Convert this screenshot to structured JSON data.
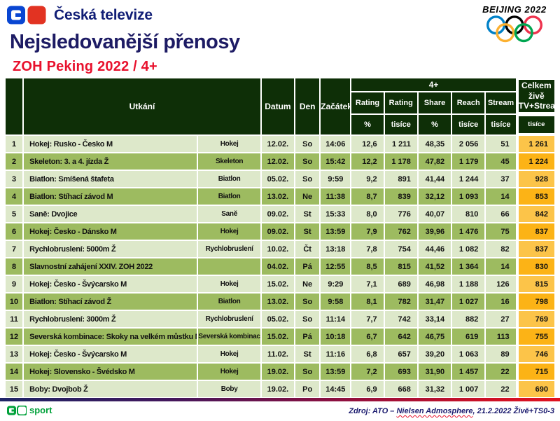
{
  "brand": {
    "name": "Česká televize",
    "sport_label": "sport"
  },
  "page": {
    "title": "Nejsledovanější přenosy",
    "subtitle": "ZOH Peking 2022 / 4+"
  },
  "olympics": {
    "wordmark": "BEIJING 2022"
  },
  "table": {
    "group_4plus": "4+",
    "columns": {
      "utkani": "Utkání",
      "datum": "Datum",
      "den": "Den",
      "zacatek": "Začátek",
      "rating": "Rating",
      "share": "Share",
      "reach": "Reach",
      "stream": "Stream",
      "celkem": "Celkem živě TV+Stream"
    },
    "units": {
      "pct": "%",
      "tisice": "tisíce"
    },
    "rows": [
      {
        "rank": "1",
        "name": "Hokej: Rusko - Česko M",
        "sport": "Hokej",
        "datum": "12.02.",
        "den": "So",
        "zacatek": "14:06",
        "rating_pct": "12,6",
        "rating_tis": "1 211",
        "share_pct": "48,35",
        "reach_tis": "2 056",
        "stream_tis": "51",
        "celkem_tis": "1 261"
      },
      {
        "rank": "2",
        "name": "Skeleton: 3. a 4. jízda Ž",
        "sport": "Skeleton",
        "datum": "12.02.",
        "den": "So",
        "zacatek": "15:42",
        "rating_pct": "12,2",
        "rating_tis": "1 178",
        "share_pct": "47,82",
        "reach_tis": "1 179",
        "stream_tis": "45",
        "celkem_tis": "1 224"
      },
      {
        "rank": "3",
        "name": "Biatlon: Smíšená štafeta",
        "sport": "Biatlon",
        "datum": "05.02.",
        "den": "So",
        "zacatek": "9:59",
        "rating_pct": "9,2",
        "rating_tis": "891",
        "share_pct": "41,44",
        "reach_tis": "1 244",
        "stream_tis": "37",
        "celkem_tis": "928"
      },
      {
        "rank": "4",
        "name": "Biatlon: Stíhací závod M",
        "sport": "Biatlon",
        "datum": "13.02.",
        "den": "Ne",
        "zacatek": "11:38",
        "rating_pct": "8,7",
        "rating_tis": "839",
        "share_pct": "32,12",
        "reach_tis": "1 093",
        "stream_tis": "14",
        "celkem_tis": "853"
      },
      {
        "rank": "5",
        "name": "Saně: Dvojice",
        "sport": "Saně",
        "datum": "09.02.",
        "den": "St",
        "zacatek": "15:33",
        "rating_pct": "8,0",
        "rating_tis": "776",
        "share_pct": "40,07",
        "reach_tis": "810",
        "stream_tis": "66",
        "celkem_tis": "842"
      },
      {
        "rank": "6",
        "name": "Hokej: Česko - Dánsko M",
        "sport": "Hokej",
        "datum": "09.02.",
        "den": "St",
        "zacatek": "13:59",
        "rating_pct": "7,9",
        "rating_tis": "762",
        "share_pct": "39,96",
        "reach_tis": "1 476",
        "stream_tis": "75",
        "celkem_tis": "837"
      },
      {
        "rank": "7",
        "name": "Rychlobruslení: 5000m Ž",
        "sport": "Rychlobruslení",
        "datum": "10.02.",
        "den": "Čt",
        "zacatek": "13:18",
        "rating_pct": "7,8",
        "rating_tis": "754",
        "share_pct": "44,46",
        "reach_tis": "1 082",
        "stream_tis": "82",
        "celkem_tis": "837"
      },
      {
        "rank": "8",
        "name": "Slavnostní zahájení XXIV. ZOH 2022",
        "sport": "",
        "datum": "04.02.",
        "den": "Pá",
        "zacatek": "12:55",
        "rating_pct": "8,5",
        "rating_tis": "815",
        "share_pct": "41,52",
        "reach_tis": "1 364",
        "stream_tis": "14",
        "celkem_tis": "830"
      },
      {
        "rank": "9",
        "name": "Hokej: Česko - Švýcarsko M",
        "sport": "Hokej",
        "datum": "15.02.",
        "den": "Ne",
        "zacatek": "9:29",
        "rating_pct": "7,1",
        "rating_tis": "689",
        "share_pct": "46,98",
        "reach_tis": "1 188",
        "stream_tis": "126",
        "celkem_tis": "815"
      },
      {
        "rank": "10",
        "name": "Biatlon: Stíhací závod Ž",
        "sport": "Biatlon",
        "datum": "13.02.",
        "den": "So",
        "zacatek": "9:58",
        "rating_pct": "8,1",
        "rating_tis": "782",
        "share_pct": "31,47",
        "reach_tis": "1 027",
        "stream_tis": "16",
        "celkem_tis": "798"
      },
      {
        "rank": "11",
        "name": "Rychlobruslení: 3000m Ž",
        "sport": "Rychlobruslení",
        "datum": "05.02.",
        "den": "So",
        "zacatek": "11:14",
        "rating_pct": "7,7",
        "rating_tis": "742",
        "share_pct": "33,14",
        "reach_tis": "882",
        "stream_tis": "27",
        "celkem_tis": "769"
      },
      {
        "rank": "12",
        "name": "Severská kombinace: Skoky na velkém můstku M",
        "sport": "Severská kombinace",
        "datum": "15.02.",
        "den": "Pá",
        "zacatek": "10:18",
        "rating_pct": "6,7",
        "rating_tis": "642",
        "share_pct": "46,75",
        "reach_tis": "619",
        "stream_tis": "113",
        "celkem_tis": "755"
      },
      {
        "rank": "13",
        "name": "Hokej: Česko - Švýcarsko M",
        "sport": "Hokej",
        "datum": "11.02.",
        "den": "St",
        "zacatek": "11:16",
        "rating_pct": "6,8",
        "rating_tis": "657",
        "share_pct": "39,20",
        "reach_tis": "1 063",
        "stream_tis": "89",
        "celkem_tis": "746"
      },
      {
        "rank": "14",
        "name": "Hokej: Slovensko - Švédsko M",
        "sport": "Hokej",
        "datum": "19.02.",
        "den": "So",
        "zacatek": "13:59",
        "rating_pct": "7,2",
        "rating_tis": "693",
        "share_pct": "31,90",
        "reach_tis": "1 457",
        "stream_tis": "22",
        "celkem_tis": "715"
      },
      {
        "rank": "15",
        "name": "Boby: Dvojbob Ž",
        "sport": "Boby",
        "datum": "19.02.",
        "den": "Po",
        "zacatek": "14:45",
        "rating_pct": "6,9",
        "rating_tis": "668",
        "share_pct": "31,32",
        "reach_tis": "1 007",
        "stream_tis": "22",
        "celkem_tis": "690"
      }
    ]
  },
  "footer": {
    "source_prefix": "Zdroj: ATO – ",
    "source_highlight": "Nielsen Admosphere",
    "source_suffix": ", 21.2.2022 Živě+TS0-3"
  },
  "colors": {
    "header_green": "#0e2f07",
    "row_light": "#dde8ca",
    "row_dark": "#9dbb60",
    "celkem_light": "#fcc449",
    "celkem_dark": "#fcb316",
    "title_navy": "#1d1b64",
    "brand_navy": "#101d75",
    "accent_red": "#e8112d",
    "sport_green": "#00a13a",
    "source_navy": "#1a1a6e",
    "ct_blue": "#0946d2",
    "ct_red": "#e23322",
    "ring_blue": "#0081C8",
    "ring_yellow": "#FCB131",
    "ring_black": "#000000",
    "ring_green": "#00A651",
    "ring_red": "#EE334E"
  }
}
